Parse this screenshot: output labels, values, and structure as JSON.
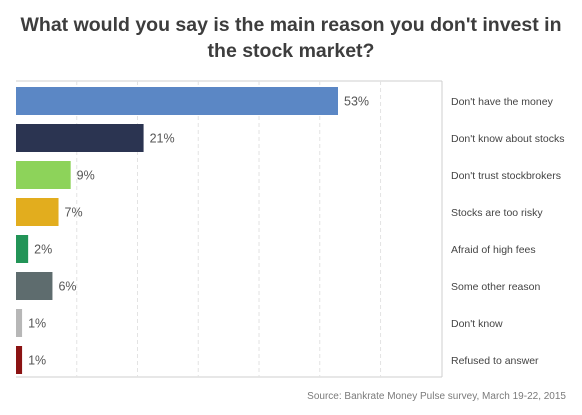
{
  "chart_data": {
    "type": "bar",
    "orientation": "horizontal",
    "title": "What would you say is the main reason you don't invest in the stock market?",
    "source": "Source: Bankrate Money Pulse survey, March 19-22, 2015",
    "value_suffix": "%",
    "xlim": [
      0,
      60
    ],
    "grid": true,
    "categories": [
      "Don't have the money",
      "Don't know about stocks",
      "Don't trust stockbrokers",
      "Stocks are too risky",
      "Afraid of high fees",
      "Some other reason",
      "Don't know",
      "Refused to answer"
    ],
    "values": [
      53,
      21,
      9,
      7,
      2,
      6,
      1,
      1
    ],
    "colors": [
      "#5b87c5",
      "#2b3451",
      "#8dd35a",
      "#e2ad1e",
      "#229457",
      "#5e6c6e",
      "#b7b7b7",
      "#8b1313"
    ],
    "label_color": "#555555",
    "grid_color": "#e3e3e3",
    "axis_color": "#cfcfcf"
  }
}
